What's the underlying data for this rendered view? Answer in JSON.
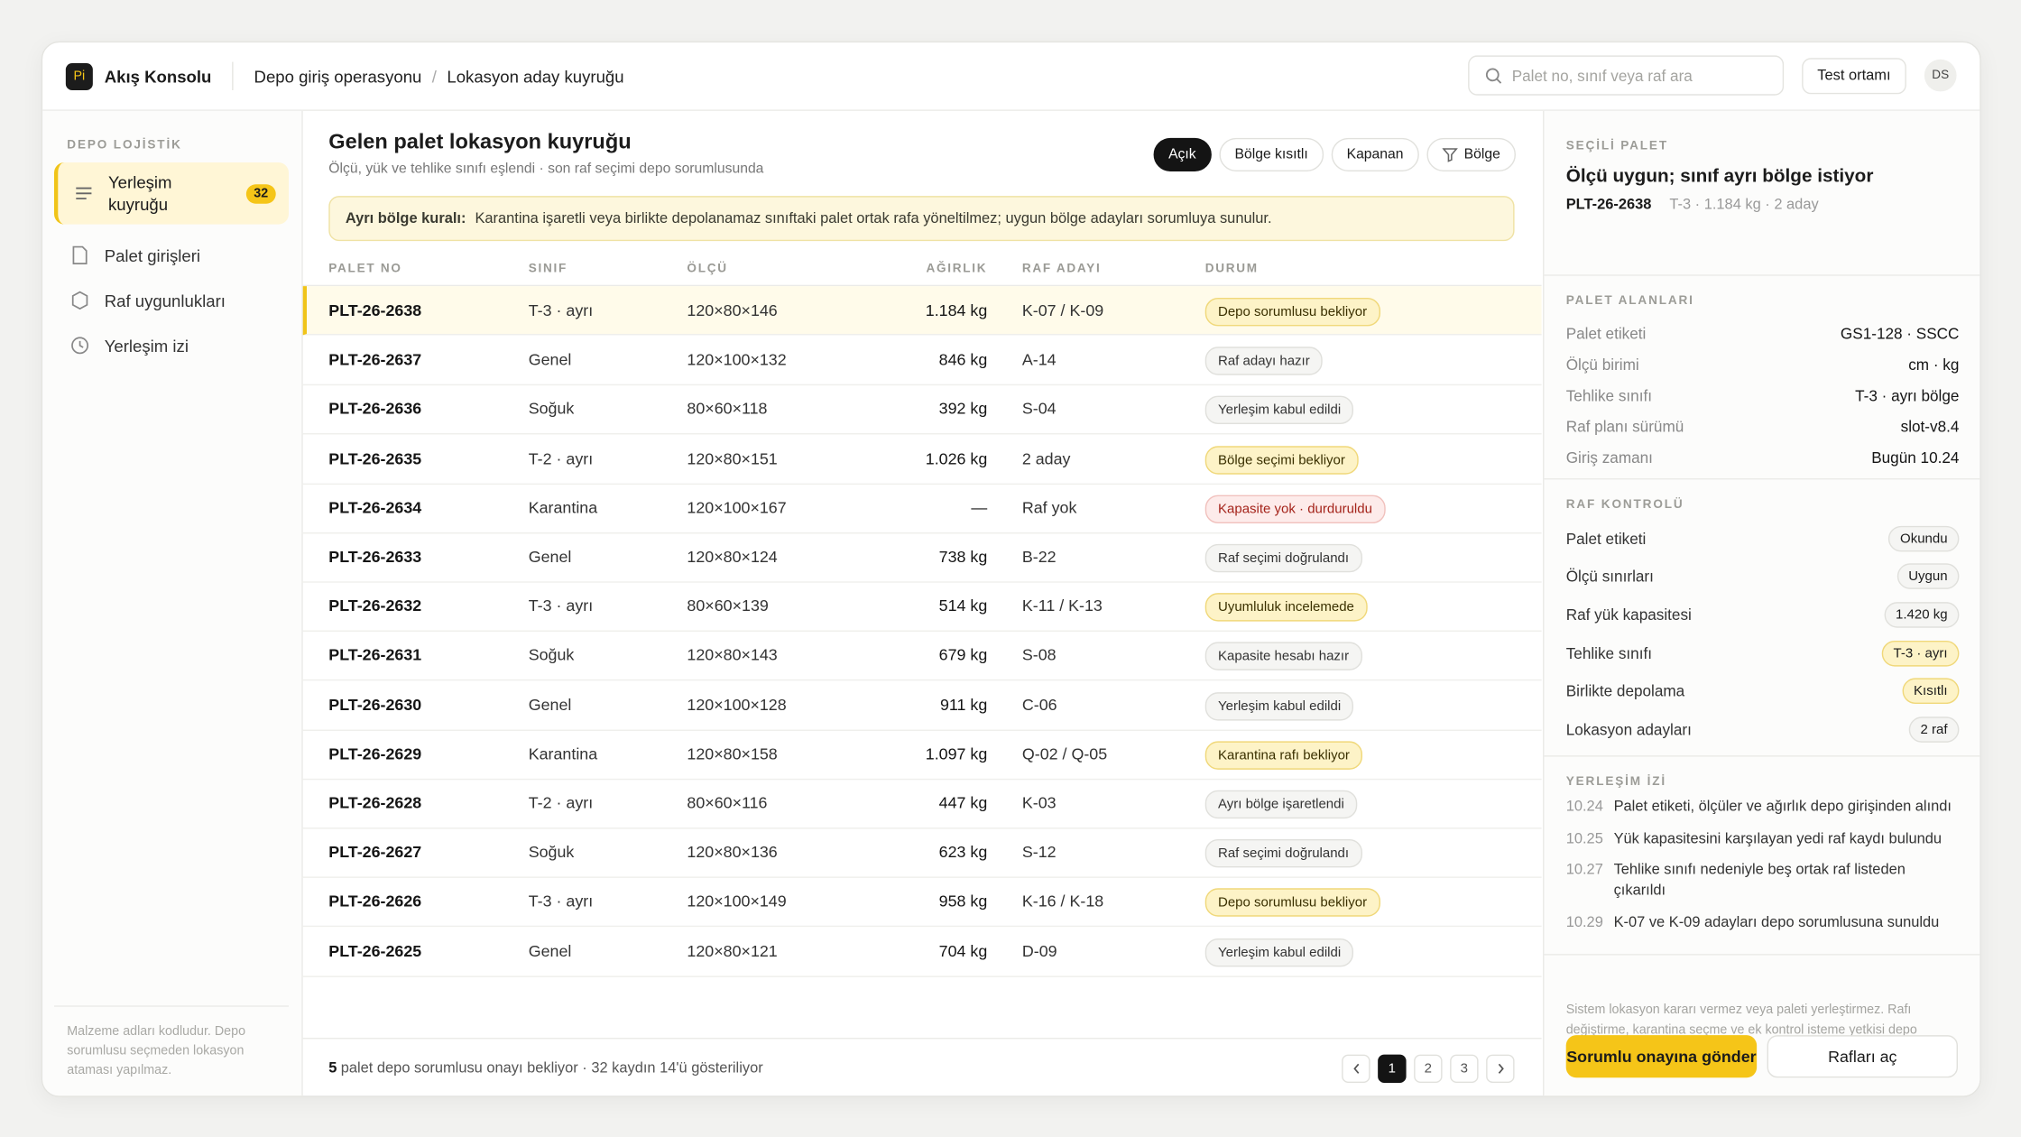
{
  "app": {
    "logo": "Pi",
    "name": "Akış Konsolu"
  },
  "breadcrumb": {
    "items": [
      "Depo giriş operasyonu",
      "Lokasyon aday kuyruğu"
    ],
    "separator": "/"
  },
  "search_placeholder": "Palet no, sınıf veya raf ara",
  "env": "Test ortamı",
  "user": "DS",
  "sidebar": {
    "section": "DEPO LOJİSTİK",
    "items": [
      {
        "label": "Yerleşim kuyruğu",
        "badge": "32"
      },
      {
        "label": "Palet girişleri"
      },
      {
        "label": "Raf uygunlukları"
      },
      {
        "label": "Yerleşim izi"
      }
    ],
    "note": "Malzeme adları kodludur. Depo sorumlusu seçmeden lokasyon ataması yapılmaz."
  },
  "main": {
    "title": "Gelen palet lokasyon kuyruğu",
    "subtitle": "Ölçü, yük ve tehlike sınıfı eşlendi · son raf seçimi depo sorumlusunda",
    "filters": [
      "Açık",
      "Bölge kısıtlı",
      "Kapanan",
      "Bölge"
    ],
    "rule": {
      "label": "Ayrı bölge kuralı:",
      "text": "Karantina işaretli veya birlikte depolanamaz sınıftaki palet ortak rafa yöneltilmez; uygun bölge adayları sorumluya sunulur."
    },
    "columns": [
      "PALET NO",
      "SINIF",
      "ÖLÇÜ",
      "AĞIRLIK",
      "RAF ADAYI",
      "DURUM"
    ],
    "rows": [
      [
        "PLT-26-2638",
        "T-3 · ayrı",
        "120×80×146",
        "1.184 kg",
        "K-07 / K-09",
        "Depo sorumlusu bekliyor"
      ],
      [
        "PLT-26-2637",
        "Genel",
        "120×100×132",
        "846 kg",
        "A-14",
        "Raf adayı hazır"
      ],
      [
        "PLT-26-2636",
        "Soğuk",
        "80×60×118",
        "392 kg",
        "S-04",
        "Yerleşim kabul edildi"
      ],
      [
        "PLT-26-2635",
        "T-2 · ayrı",
        "120×80×151",
        "1.026 kg",
        "2 aday",
        "Bölge seçimi bekliyor"
      ],
      [
        "PLT-26-2634",
        "Karantina",
        "120×100×167",
        "—",
        "Raf yok",
        "Kapasite yok · durduruldu"
      ],
      [
        "PLT-26-2633",
        "Genel",
        "120×80×124",
        "738 kg",
        "B-22",
        "Raf seçimi doğrulandı"
      ],
      [
        "PLT-26-2632",
        "T-3 · ayrı",
        "80×60×139",
        "514 kg",
        "K-11 / K-13",
        "Uyumluluk incelemede"
      ],
      [
        "PLT-26-2631",
        "Soğuk",
        "120×80×143",
        "679 kg",
        "S-08",
        "Kapasite hesabı hazır"
      ],
      [
        "PLT-26-2630",
        "Genel",
        "120×100×128",
        "911 kg",
        "C-06",
        "Yerleşim kabul edildi"
      ],
      [
        "PLT-26-2629",
        "Karantina",
        "120×80×158",
        "1.097 kg",
        "Q-02 / Q-05",
        "Karantina rafı bekliyor"
      ],
      [
        "PLT-26-2628",
        "T-2 · ayrı",
        "80×60×116",
        "447 kg",
        "K-03",
        "Ayrı bölge işaretlendi"
      ],
      [
        "PLT-26-2627",
        "Soğuk",
        "120×80×136",
        "623 kg",
        "S-12",
        "Raf seçimi doğrulandı"
      ],
      [
        "PLT-26-2626",
        "T-3 · ayrı",
        "120×100×149",
        "958 kg",
        "K-16 / K-18",
        "Depo sorumlusu bekliyor"
      ],
      [
        "PLT-26-2625",
        "Genel",
        "120×80×121",
        "704 kg",
        "D-09",
        "Yerleşim kabul edildi"
      ]
    ],
    "row_tones": [
      "warn",
      "neutral",
      "neutral",
      "warn",
      "danger",
      "neutral",
      "warn",
      "neutral",
      "neutral",
      "warn",
      "neutral",
      "neutral",
      "warn",
      "neutral"
    ],
    "footer": {
      "count": "5",
      "text": "palet depo sorumlusu onayı bekliyor · 32 kaydın 14'ü gösteriliyor"
    },
    "pages": [
      "1",
      "2",
      "3"
    ]
  },
  "detail": {
    "section": "SEÇİLİ PALET",
    "title": "Ölçü uygun; sınıf ayrı bölge istiyor",
    "id": "PLT-26-2638",
    "meta": "T-3 · 1.184 kg · 2 aday",
    "fields_title": "PALET ALANLARI",
    "fields": [
      [
        "Palet etiketi",
        "GS1-128 · SSCC"
      ],
      [
        "Ölçü birimi",
        "cm · kg"
      ],
      [
        "Tehlike sınıfı",
        "T-3 · ayrı bölge"
      ],
      [
        "Raf planı sürümü",
        "slot-v8.4"
      ],
      [
        "Giriş zamanı",
        "Bugün 10.24"
      ]
    ],
    "checks_title": "RAF KONTROLÜ",
    "checks": [
      [
        "Palet etiketi",
        "Okundu"
      ],
      [
        "Ölçü sınırları",
        "Uygun"
      ],
      [
        "Raf yük kapasitesi",
        "1.420 kg"
      ],
      [
        "Tehlike sınıfı",
        "T-3 · ayrı"
      ],
      [
        "Birlikte depolama",
        "Kısıtlı"
      ],
      [
        "Lokasyon adayları",
        "2 raf"
      ]
    ],
    "check_tones": [
      "neutral",
      "neutral",
      "neutral",
      "warn",
      "warn",
      "neutral"
    ],
    "trace_title": "YERLEŞİM İZİ",
    "trace": [
      [
        "10.24",
        "Palet etiketi, ölçüler ve ağırlık depo girişinden alındı"
      ],
      [
        "10.25",
        "Yük kapasitesini karşılayan yedi raf kaydı bulundu"
      ],
      [
        "10.27",
        "Tehlike sınıfı nedeniyle beş ortak raf listeden çıkarıldı"
      ],
      [
        "10.29",
        "K-07 ve K-09 adayları depo sorumlusuna sunuldu"
      ]
    ],
    "note": "Sistem lokasyon kararı vermez veya paleti yerleştirmez. Rafı değiştirme, karantina seçme ve ek kontrol isteme yetkisi depo sorumlusundadır.",
    "primary": "Sorumlu onayına gönder",
    "secondary": "Rafları aç"
  }
}
